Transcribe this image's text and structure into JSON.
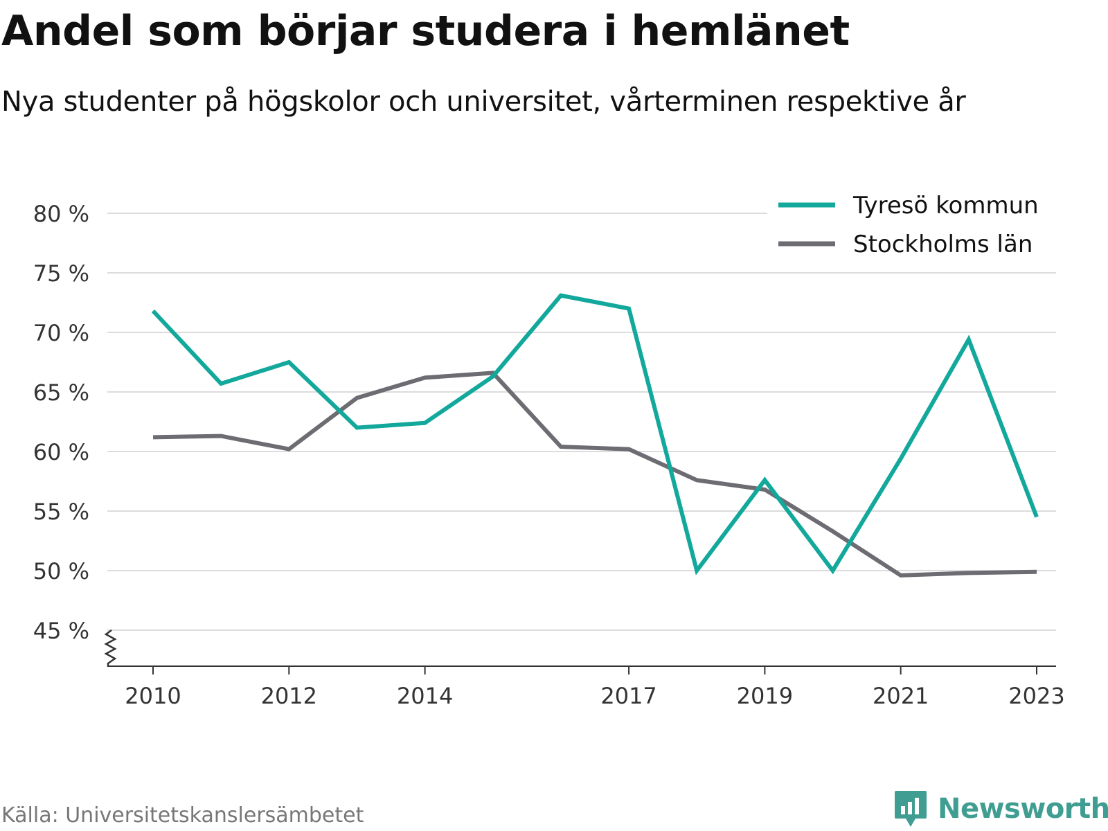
{
  "chart_data": {
    "type": "line",
    "title": "Andel som börjar studera i hemlänet",
    "subtitle": "Nya studenter på högskolor och universitet, vårterminen respektive år",
    "x": [
      2010,
      2011,
      2012,
      2013,
      2014,
      2015,
      2016,
      2017,
      2018,
      2019,
      2020,
      2021,
      2022,
      2023
    ],
    "xticks": [
      "2010",
      "2012",
      "2014",
      "2017",
      "2019",
      "2021",
      "2023"
    ],
    "xtick_values": [
      2010,
      2012,
      2014,
      2017,
      2019,
      2021,
      2023
    ],
    "yticks": [
      45,
      50,
      55,
      60,
      65,
      70,
      75,
      80
    ],
    "ytick_labels": [
      "45 %",
      "50 %",
      "55 %",
      "60 %",
      "65 %",
      "70 %",
      "75 %",
      "80 %"
    ],
    "ylim": [
      42,
      80
    ],
    "grid": true,
    "legend_position": "top-right",
    "series": [
      {
        "name": "Tyresö kommun",
        "color": "#12a89b",
        "values": [
          71.8,
          65.7,
          67.5,
          62.0,
          62.4,
          66.3,
          73.1,
          72.0,
          50.0,
          57.6,
          50.0,
          59.4,
          69.4,
          54.5
        ]
      },
      {
        "name": "Stockholms län",
        "color": "#6e6c73",
        "values": [
          61.2,
          61.3,
          60.2,
          64.5,
          66.2,
          66.6,
          60.4,
          60.2,
          57.6,
          56.8,
          53.3,
          49.6,
          49.8,
          49.9
        ]
      }
    ]
  },
  "source": "Källa: Universitetskanslersämbetet",
  "brand": {
    "name": "Newsworthy",
    "color": "#3f9e91",
    "icon": "newsworthy-logo-icon"
  }
}
